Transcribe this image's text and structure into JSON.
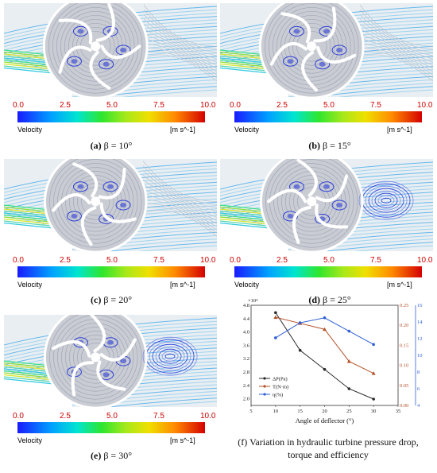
{
  "panels": [
    {
      "id": "a",
      "label": "(a)",
      "caption": "β = 10°"
    },
    {
      "id": "b",
      "label": "(b)",
      "caption": "β = 15°"
    },
    {
      "id": "c",
      "label": "(c)",
      "caption": "β = 20°"
    },
    {
      "id": "d",
      "label": "(d)",
      "caption": "β = 25°"
    },
    {
      "id": "e",
      "label": "(e)",
      "caption": "β = 30°"
    }
  ],
  "colorbar": {
    "ticks": [
      "0.0",
      "2.5",
      "5.0",
      "7.5",
      "10.0"
    ],
    "title": "Velocity",
    "units": "[m s^-1]"
  },
  "figure_f": {
    "label": "(f)",
    "caption_line1": "Variation in hydraulic turbine pressure drop,",
    "caption_line2": "torque and efficiency"
  },
  "colors": {
    "series_dp": "#2b2b2b",
    "series_t": "#b4532a",
    "series_eta": "#2f5fd6"
  },
  "chart_data": {
    "type": "line",
    "xlabel": "Angle of deflector (°)",
    "x_ticks": [
      "5",
      "10",
      "15",
      "20",
      "25",
      "30",
      "35"
    ],
    "xlim": [
      5,
      35
    ],
    "y1": {
      "multiplier": "×10⁴",
      "ticks": [
        "2.0",
        "2.4",
        "2.8",
        "3.2",
        "3.6",
        "4.0",
        "4.4",
        "4.8"
      ],
      "ylim": [
        1.8,
        4.8
      ]
    },
    "y2": {
      "ticks": [
        "0.00",
        "0.05",
        "0.10",
        "0.15",
        "0.20",
        "0.25"
      ],
      "ylim": [
        0,
        0.25
      ]
    },
    "y3": {
      "ticks": [
        "4",
        "6",
        "8",
        "10",
        "12",
        "14",
        "16"
      ],
      "ylim": [
        4,
        16
      ]
    },
    "series": [
      {
        "name": "ΔP(Pa)",
        "axis": "y1",
        "x": [
          10,
          15,
          20,
          25,
          30
        ],
        "values": [
          4.58,
          3.45,
          2.88,
          2.3,
          1.99
        ]
      },
      {
        "name": "T(N·m)",
        "axis": "y2",
        "x": [
          10,
          15,
          20,
          25,
          30
        ],
        "values": [
          0.22,
          0.205,
          0.19,
          0.11,
          0.08
        ]
      },
      {
        "name": "η(%)",
        "axis": "y3",
        "x": [
          10,
          15,
          20,
          25,
          30
        ],
        "values": [
          12.1,
          13.9,
          14.5,
          12.9,
          11.3
        ]
      }
    ]
  }
}
